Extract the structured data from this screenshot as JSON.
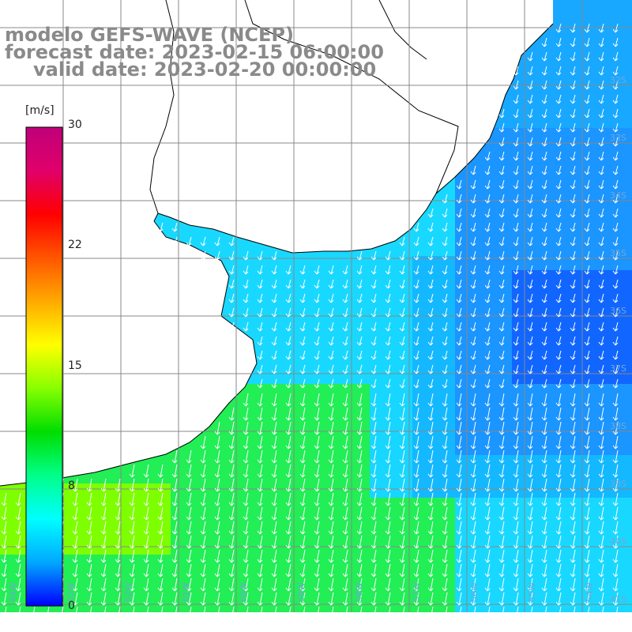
{
  "header": {
    "line1": "modelo GEFS-WAVE (NCEP)",
    "line2": "forecast date: 2023-02-15 06:00:00",
    "line3": "valid date: 2023-02-20 00:00:00"
  },
  "colorbar": {
    "unit": "[m/s]",
    "ticks": [
      "30",
      "22",
      "15",
      "8",
      "0"
    ],
    "tick_values": [
      30,
      22,
      15,
      8,
      0
    ],
    "colors": [
      "#0000ff",
      "#00a8ff",
      "#00ffff",
      "#00ff88",
      "#00dd00",
      "#88ff00",
      "#ffff00",
      "#ffaa00",
      "#ff5500",
      "#ff0000",
      "#e0006a",
      "#c0007a"
    ]
  },
  "map": {
    "lat_labels": [
      "32S",
      "33S",
      "34S",
      "35S",
      "36S",
      "37S",
      "38S",
      "39S",
      "40S",
      "41S"
    ],
    "lon_labels": [
      "64W",
      "63W",
      "62W",
      "61W",
      "60W",
      "59W",
      "58W",
      "57W",
      "56W",
      "55W",
      "54W"
    ],
    "water_color": "#ffffff",
    "land_color": "#ffffff",
    "grid_color": "#888888"
  }
}
